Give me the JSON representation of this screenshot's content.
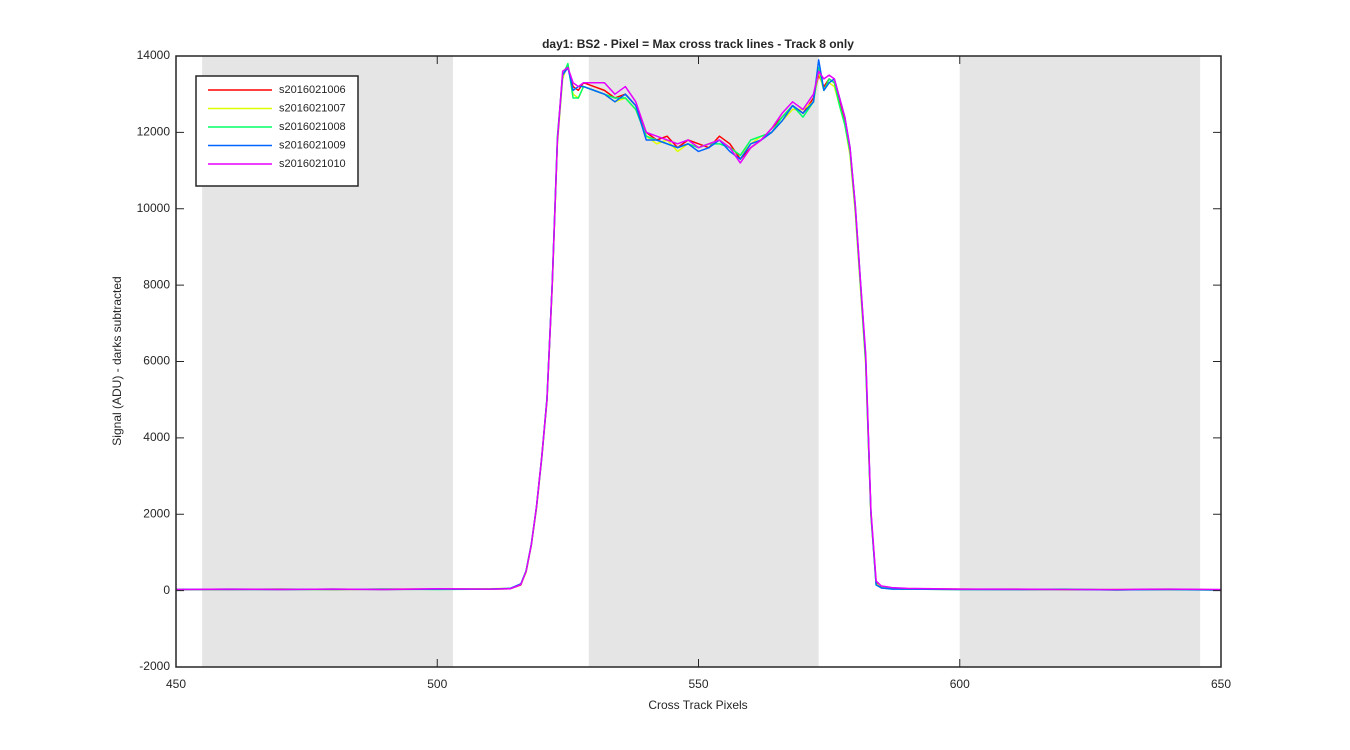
{
  "chart_data": {
    "type": "line",
    "title": "day1: BS2 - Pixel = Max cross track lines - Track 8 only",
    "x_label": "Cross Track Pixels",
    "y_label": "Signal (ADU) - darks subtracted",
    "xlim": [
      450,
      650
    ],
    "xticks": [
      450,
      500,
      550,
      600,
      650
    ],
    "ylim": [
      -2000,
      14000
    ],
    "yticks": [
      -2000,
      0,
      2000,
      4000,
      6000,
      8000,
      10000,
      12000,
      14000
    ],
    "grid": false,
    "legend_position": "upper-left",
    "shaded_regions": [
      [
        455,
        503
      ],
      [
        529,
        573
      ],
      [
        600,
        646
      ]
    ],
    "shade_color": "#e5e5e5",
    "x": [
      450,
      460,
      470,
      480,
      490,
      500,
      510,
      514,
      516,
      517,
      518,
      519,
      520,
      521,
      522,
      523,
      524,
      525,
      526,
      527,
      528,
      530,
      532,
      534,
      536,
      538,
      540,
      542,
      544,
      546,
      548,
      550,
      552,
      554,
      556,
      558,
      560,
      562,
      564,
      566,
      568,
      570,
      572,
      573,
      574,
      575,
      576,
      577,
      578,
      579,
      580,
      581,
      582,
      583,
      584,
      585,
      587,
      590,
      600,
      610,
      620,
      630,
      640,
      650
    ],
    "series": [
      {
        "name": "s2016021006",
        "color": "#ff0000",
        "values": [
          30,
          30,
          40,
          30,
          40,
          40,
          40,
          50,
          150,
          500,
          1200,
          2200,
          3500,
          5000,
          8000,
          11800,
          13500,
          13700,
          13200,
          13100,
          13300,
          13200,
          13100,
          12900,
          13000,
          12700,
          12000,
          11800,
          11900,
          11600,
          11800,
          11700,
          11600,
          11900,
          11700,
          11300,
          11600,
          11800,
          12100,
          12400,
          12700,
          12500,
          12900,
          13500,
          13200,
          13400,
          13300,
          12800,
          12300,
          11500,
          10000,
          8000,
          6000,
          2000,
          200,
          100,
          60,
          50,
          40,
          30,
          30,
          20,
          30,
          20
        ]
      },
      {
        "name": "s2016021007",
        "color": "#ddff00",
        "values": [
          20,
          30,
          30,
          40,
          30,
          40,
          50,
          60,
          160,
          480,
          1180,
          2150,
          3450,
          4950,
          7900,
          11700,
          13400,
          13800,
          13000,
          12900,
          13200,
          13100,
          13000,
          12800,
          12900,
          12600,
          11900,
          11700,
          11800,
          11500,
          11700,
          11600,
          11700,
          11800,
          11600,
          11400,
          11700,
          11900,
          12000,
          12300,
          12600,
          12600,
          12800,
          13600,
          13100,
          13300,
          13200,
          12700,
          12200,
          11400,
          9900,
          7900,
          5900,
          1950,
          180,
          90,
          50,
          40,
          30,
          40,
          20,
          30,
          40,
          20
        ]
      },
      {
        "name": "s2016021008",
        "color": "#00ff66",
        "values": [
          30,
          40,
          30,
          30,
          40,
          30,
          40,
          50,
          170,
          520,
          1220,
          2200,
          3500,
          5050,
          8050,
          11900,
          13500,
          13800,
          12900,
          12900,
          13200,
          13100,
          13000,
          12900,
          12900,
          12600,
          11900,
          11800,
          11700,
          11600,
          11700,
          11600,
          11700,
          11700,
          11600,
          11400,
          11800,
          11900,
          12000,
          12400,
          12700,
          12400,
          12800,
          13700,
          13100,
          13400,
          13300,
          12700,
          12200,
          11500,
          10000,
          8000,
          6000,
          2000,
          150,
          80,
          50,
          40,
          30,
          30,
          40,
          20,
          30,
          10
        ]
      },
      {
        "name": "s2016021009",
        "color": "#0066ff",
        "values": [
          30,
          30,
          30,
          40,
          30,
          40,
          40,
          60,
          180,
          510,
          1200,
          2200,
          3480,
          5000,
          8000,
          11800,
          13500,
          13700,
          13100,
          13200,
          13200,
          13100,
          13000,
          12800,
          13000,
          12700,
          11800,
          11800,
          11700,
          11600,
          11700,
          11500,
          11600,
          11800,
          11500,
          11300,
          11700,
          11800,
          12000,
          12300,
          12700,
          12500,
          12800,
          13900,
          13100,
          13300,
          13400,
          12900,
          12400,
          11600,
          10100,
          8100,
          6100,
          2050,
          150,
          70,
          40,
          40,
          30,
          30,
          30,
          20,
          30,
          20
        ]
      },
      {
        "name": "s2016021010",
        "color": "#e600ff",
        "values": [
          30,
          40,
          30,
          40,
          30,
          50,
          40,
          50,
          160,
          500,
          1200,
          2200,
          3500,
          5000,
          8000,
          11800,
          13600,
          13700,
          13300,
          13200,
          13300,
          13300,
          13300,
          13000,
          13200,
          12800,
          12000,
          11900,
          11800,
          11700,
          11800,
          11600,
          11700,
          11800,
          11600,
          11200,
          11600,
          11800,
          12100,
          12500,
          12800,
          12600,
          13000,
          13600,
          13400,
          13500,
          13400,
          12900,
          12400,
          11600,
          10100,
          8100,
          6200,
          2100,
          250,
          120,
          80,
          60,
          40,
          40,
          30,
          30,
          40,
          30
        ]
      }
    ]
  }
}
